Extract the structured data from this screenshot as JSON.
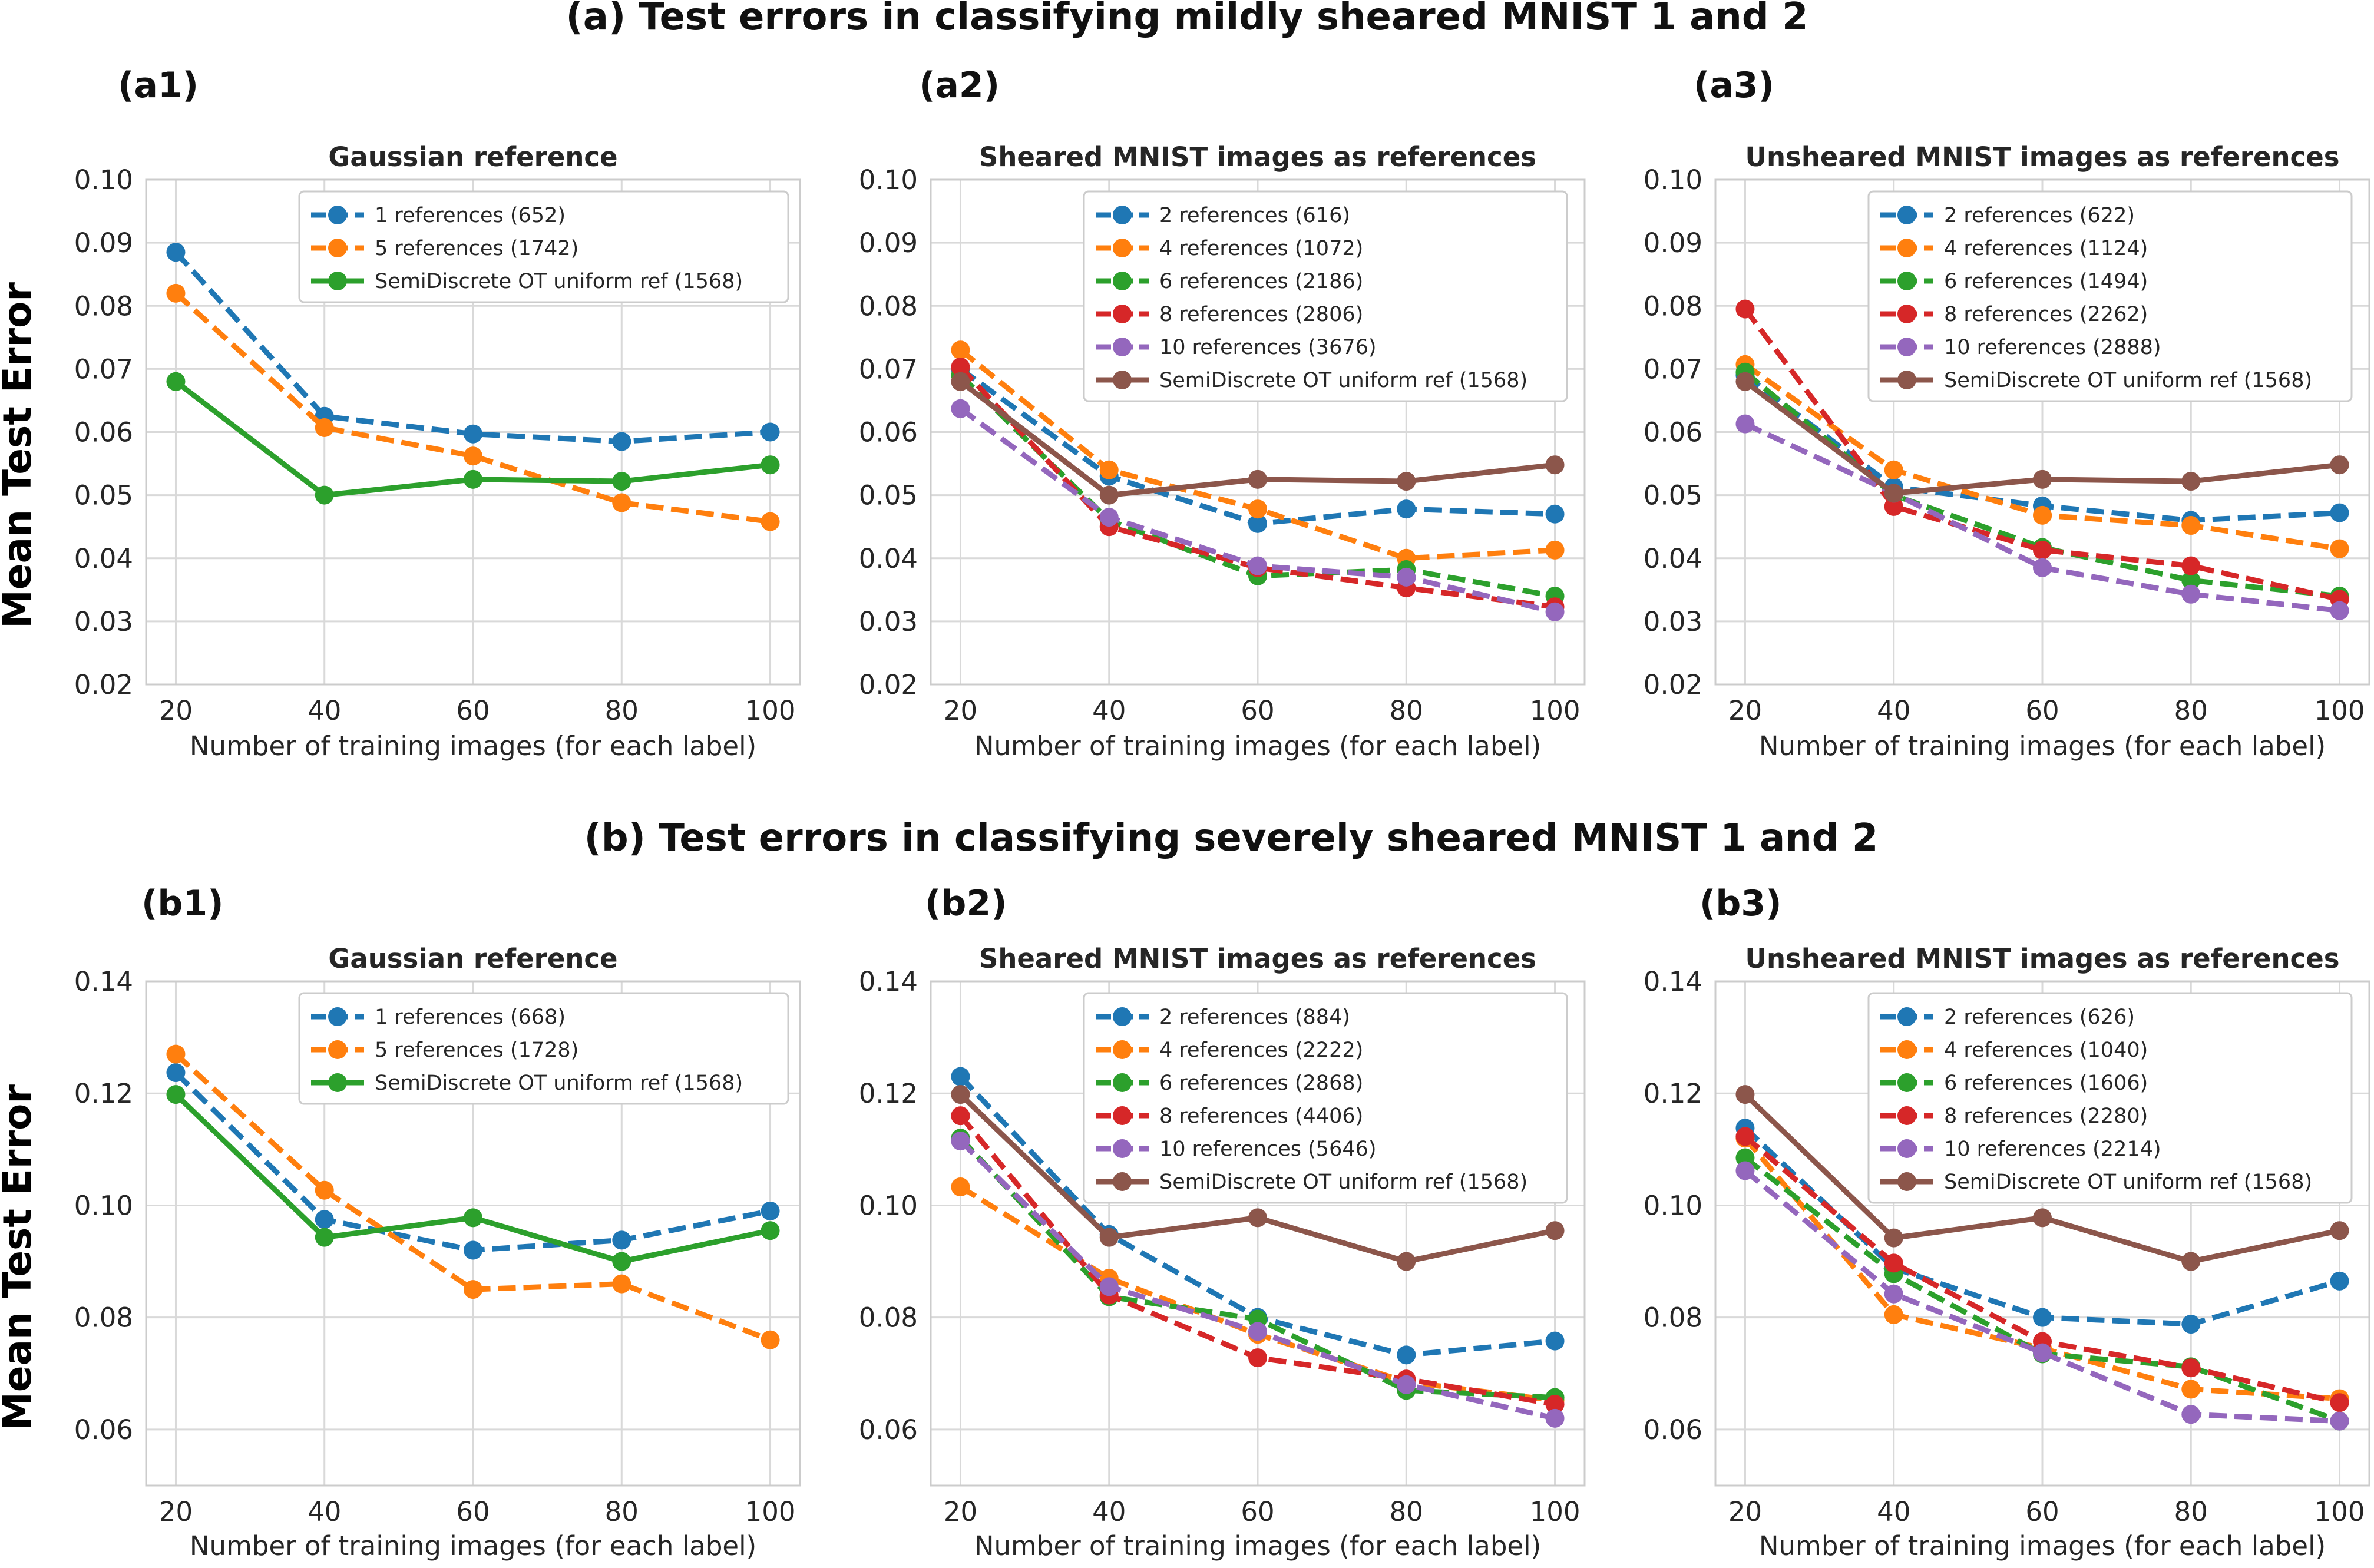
{
  "figure": {
    "section_a_title": "(a) Test errors in classifying mildly sheared MNIST 1 and 2",
    "section_b_title": "(b) Test errors in classifying severely sheared MNIST 1 and 2",
    "ylabel": "Mean Test Error"
  },
  "chart_data": [
    {
      "id": "a1",
      "panel_label": "(a1)",
      "type": "line",
      "title": "Gaussian reference",
      "xlabel": "Number of training images (for each label)",
      "ylabel": "Mean Test Error",
      "x": [
        20,
        40,
        60,
        80,
        100
      ],
      "xticks": [
        "20",
        "40",
        "60",
        "80",
        "100"
      ],
      "ylim": [
        0.02,
        0.1
      ],
      "yticks": [
        "0.02",
        "0.03",
        "0.04",
        "0.05",
        "0.06",
        "0.07",
        "0.08",
        "0.09",
        "0.10"
      ],
      "legend_position": "top-right",
      "series": [
        {
          "name": "1 references (652)",
          "color": "#1f77b4",
          "style": "dashed",
          "values": [
            0.0885,
            0.0625,
            0.0597,
            0.0585,
            0.06
          ]
        },
        {
          "name": "5 references (1742)",
          "color": "#ff7f0e",
          "style": "dashed",
          "values": [
            0.082,
            0.0607,
            0.0562,
            0.0488,
            0.0458
          ]
        },
        {
          "name": "SemiDiscrete OT uniform ref (1568)",
          "color": "#2ca02c",
          "style": "solid",
          "values": [
            0.068,
            0.05,
            0.0525,
            0.0522,
            0.0548
          ]
        }
      ]
    },
    {
      "id": "a2",
      "panel_label": "(a2)",
      "type": "line",
      "title": "Sheared MNIST images as references",
      "xlabel": "Number of training images (for each label)",
      "ylabel": "Mean Test Error",
      "x": [
        20,
        40,
        60,
        80,
        100
      ],
      "xticks": [
        "20",
        "40",
        "60",
        "80",
        "100"
      ],
      "ylim": [
        0.02,
        0.1
      ],
      "yticks": [
        "0.02",
        "0.03",
        "0.04",
        "0.05",
        "0.06",
        "0.07",
        "0.08",
        "0.09",
        "0.10"
      ],
      "legend_position": "top-right",
      "series": [
        {
          "name": "2 references (616)",
          "color": "#1f77b4",
          "style": "dashed",
          "values": [
            0.07,
            0.053,
            0.0455,
            0.0478,
            0.047
          ]
        },
        {
          "name": "4 references (1072)",
          "color": "#ff7f0e",
          "style": "dashed",
          "values": [
            0.073,
            0.054,
            0.0478,
            0.04,
            0.0413
          ]
        },
        {
          "name": "6 references (2186)",
          "color": "#2ca02c",
          "style": "dashed",
          "values": [
            0.069,
            0.046,
            0.0372,
            0.0382,
            0.034
          ]
        },
        {
          "name": "8 references (2806)",
          "color": "#d62728",
          "style": "dashed",
          "values": [
            0.0703,
            0.045,
            0.0385,
            0.0353,
            0.0323
          ]
        },
        {
          "name": "10 references (3676)",
          "color": "#9467bd",
          "style": "dashed",
          "values": [
            0.0637,
            0.0465,
            0.0388,
            0.037,
            0.0315
          ]
        },
        {
          "name": "SemiDiscrete OT uniform ref (1568)",
          "color": "#8c564b",
          "style": "solid",
          "values": [
            0.068,
            0.05,
            0.0525,
            0.0522,
            0.0548
          ]
        }
      ]
    },
    {
      "id": "a3",
      "panel_label": "(a3)",
      "type": "line",
      "title": "Unsheared MNIST images as references",
      "xlabel": "Number of training images (for each label)",
      "ylabel": "Mean Test Error",
      "x": [
        20,
        40,
        60,
        80,
        100
      ],
      "xticks": [
        "20",
        "40",
        "60",
        "80",
        "100"
      ],
      "ylim": [
        0.02,
        0.1
      ],
      "yticks": [
        "0.02",
        "0.03",
        "0.04",
        "0.05",
        "0.06",
        "0.07",
        "0.08",
        "0.09",
        "0.10"
      ],
      "legend_position": "top-right",
      "series": [
        {
          "name": "2 references (622)",
          "color": "#1f77b4",
          "style": "dashed",
          "values": [
            0.069,
            0.0513,
            0.0483,
            0.046,
            0.0472
          ]
        },
        {
          "name": "4 references (1124)",
          "color": "#ff7f0e",
          "style": "dashed",
          "values": [
            0.0707,
            0.054,
            0.0468,
            0.0452,
            0.0415
          ]
        },
        {
          "name": "6 references (1494)",
          "color": "#2ca02c",
          "style": "dashed",
          "values": [
            0.0695,
            0.05,
            0.0417,
            0.0365,
            0.034
          ]
        },
        {
          "name": "8 references (2262)",
          "color": "#d62728",
          "style": "dashed",
          "values": [
            0.0795,
            0.0482,
            0.0413,
            0.0388,
            0.0335
          ]
        },
        {
          "name": "10 references (2888)",
          "color": "#9467bd",
          "style": "dashed",
          "values": [
            0.0613,
            0.0503,
            0.0385,
            0.0343,
            0.0317
          ]
        },
        {
          "name": "SemiDiscrete OT uniform ref (1568)",
          "color": "#8c564b",
          "style": "solid",
          "values": [
            0.068,
            0.0503,
            0.0525,
            0.0522,
            0.0548
          ]
        }
      ]
    },
    {
      "id": "b1",
      "panel_label": "(b1)",
      "type": "line",
      "title": "Gaussian reference",
      "xlabel": "Number of training images (for each label)",
      "ylabel": "Mean Test Error",
      "x": [
        20,
        40,
        60,
        80,
        100
      ],
      "xticks": [
        "20",
        "40",
        "60",
        "80",
        "100"
      ],
      "ylim": [
        0.05,
        0.14
      ],
      "yticks": [
        "0.06",
        "0.08",
        "0.10",
        "0.12",
        "0.14"
      ],
      "legend_position": "top-right",
      "series": [
        {
          "name": "1 references (668)",
          "color": "#1f77b4",
          "style": "dashed",
          "values": [
            0.1237,
            0.0975,
            0.092,
            0.0938,
            0.099
          ]
        },
        {
          "name": "5 references (1728)",
          "color": "#ff7f0e",
          "style": "dashed",
          "values": [
            0.127,
            0.1027,
            0.085,
            0.086,
            0.076
          ]
        },
        {
          "name": "SemiDiscrete OT uniform ref (1568)",
          "color": "#2ca02c",
          "style": "solid",
          "values": [
            0.1198,
            0.0943,
            0.0978,
            0.09,
            0.0955
          ]
        }
      ]
    },
    {
      "id": "b2",
      "panel_label": "(b2)",
      "type": "line",
      "title": "Sheared MNIST images as references",
      "xlabel": "Number of training images (for each label)",
      "ylabel": "Mean Test Error",
      "x": [
        20,
        40,
        60,
        80,
        100
      ],
      "xticks": [
        "20",
        "40",
        "60",
        "80",
        "100"
      ],
      "ylim": [
        0.05,
        0.14
      ],
      "yticks": [
        "0.06",
        "0.08",
        "0.10",
        "0.12",
        "0.14"
      ],
      "legend_position": "top-right",
      "series": [
        {
          "name": "2 references (884)",
          "color": "#1f77b4",
          "style": "dashed",
          "values": [
            0.123,
            0.0948,
            0.08,
            0.0733,
            0.0758
          ]
        },
        {
          "name": "4 references (2222)",
          "color": "#ff7f0e",
          "style": "dashed",
          "values": [
            0.1033,
            0.087,
            0.077,
            0.0685,
            0.0652
          ]
        },
        {
          "name": "6 references (2868)",
          "color": "#2ca02c",
          "style": "dashed",
          "values": [
            0.112,
            0.0837,
            0.0797,
            0.067,
            0.0657
          ]
        },
        {
          "name": "8 references (4406)",
          "color": "#d62728",
          "style": "dashed",
          "values": [
            0.116,
            0.084,
            0.0728,
            0.069,
            0.0645
          ]
        },
        {
          "name": "10 references (5646)",
          "color": "#9467bd",
          "style": "dashed",
          "values": [
            0.1115,
            0.0855,
            0.0775,
            0.068,
            0.062
          ]
        },
        {
          "name": "SemiDiscrete OT uniform ref (1568)",
          "color": "#8c564b",
          "style": "solid",
          "values": [
            0.1198,
            0.0943,
            0.0978,
            0.09,
            0.0955
          ]
        }
      ]
    },
    {
      "id": "b3",
      "panel_label": "(b3)",
      "type": "line",
      "title": "Unsheared MNIST images as references",
      "xlabel": "Number of training images (for each label)",
      "ylabel": "Mean Test Error",
      "x": [
        20,
        40,
        60,
        80,
        100
      ],
      "xticks": [
        "20",
        "40",
        "60",
        "80",
        "100"
      ],
      "ylim": [
        0.05,
        0.14
      ],
      "yticks": [
        "0.06",
        "0.08",
        "0.10",
        "0.12",
        "0.14"
      ],
      "legend_position": "top-right",
      "series": [
        {
          "name": "2 references (626)",
          "color": "#1f77b4",
          "style": "dashed",
          "values": [
            0.1138,
            0.0888,
            0.08,
            0.0788,
            0.0865
          ]
        },
        {
          "name": "4 references (1040)",
          "color": "#ff7f0e",
          "style": "dashed",
          "values": [
            0.112,
            0.0805,
            0.0745,
            0.0672,
            0.0655
          ]
        },
        {
          "name": "6 references (1606)",
          "color": "#2ca02c",
          "style": "dashed",
          "values": [
            0.1085,
            0.0878,
            0.0735,
            0.0712,
            0.0615
          ]
        },
        {
          "name": "8 references (2280)",
          "color": "#d62728",
          "style": "dashed",
          "values": [
            0.1123,
            0.0897,
            0.0757,
            0.071,
            0.0648
          ]
        },
        {
          "name": "10 references (2214)",
          "color": "#9467bd",
          "style": "dashed",
          "values": [
            0.1062,
            0.0842,
            0.0737,
            0.0627,
            0.0615
          ]
        },
        {
          "name": "SemiDiscrete OT uniform ref (1568)",
          "color": "#8c564b",
          "style": "solid",
          "values": [
            0.1198,
            0.0942,
            0.0978,
            0.09,
            0.0955
          ]
        }
      ]
    }
  ]
}
